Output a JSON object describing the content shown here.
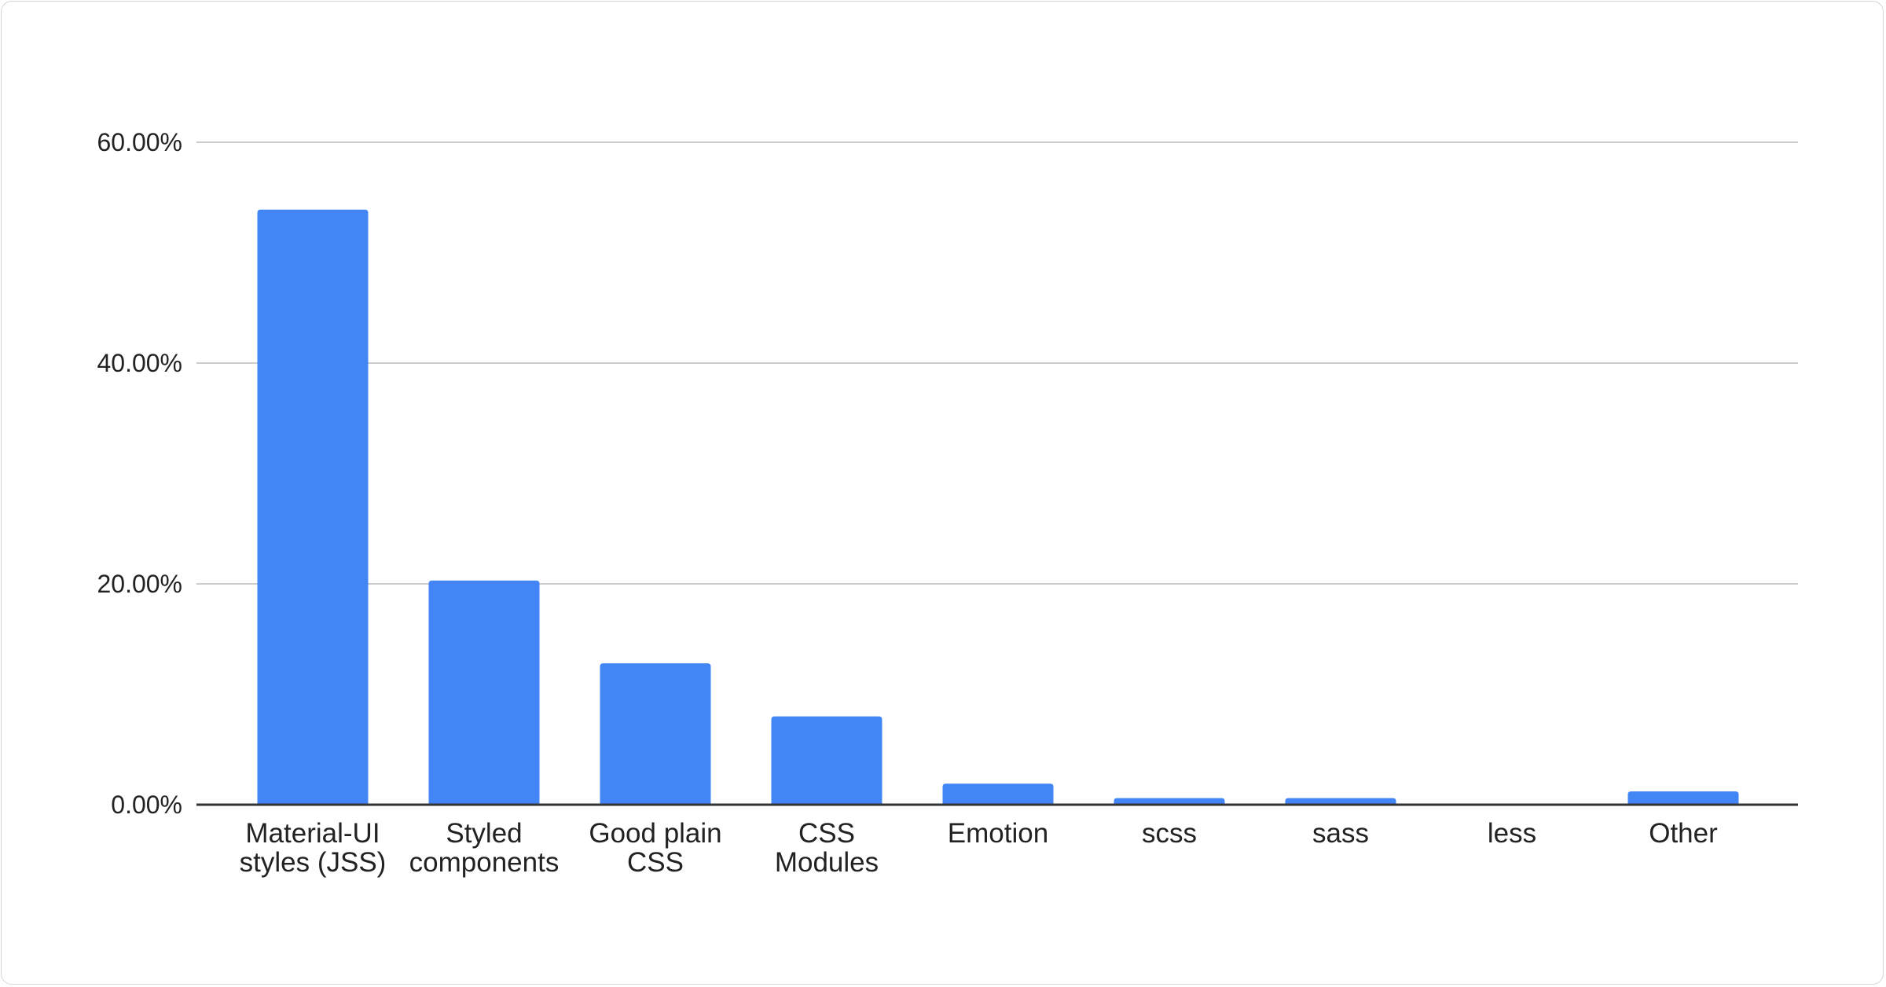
{
  "chart_data": {
    "type": "bar",
    "title": "",
    "xlabel": "",
    "ylabel": "",
    "categories": [
      [
        "Material-UI",
        "styles (JSS)"
      ],
      [
        "Styled",
        "components"
      ],
      [
        "Good plain",
        "CSS"
      ],
      [
        "CSS",
        "Modules"
      ],
      [
        "Emotion"
      ],
      [
        "scss"
      ],
      [
        "sass"
      ],
      [
        "less"
      ],
      [
        "Other"
      ]
    ],
    "values": [
      53.9,
      20.3,
      12.8,
      8.0,
      1.9,
      0.6,
      0.6,
      0.0,
      1.2
    ],
    "unit": "%",
    "ylim": [
      0,
      60
    ],
    "yticks": [
      "0.00%",
      "20.00%",
      "40.00%",
      "60.00%"
    ],
    "grid": true,
    "legend": "none",
    "bar_color": "#4285f4"
  }
}
